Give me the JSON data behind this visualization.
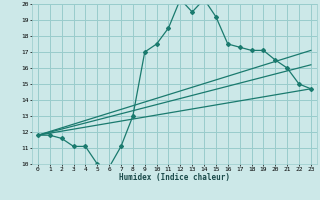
{
  "title": "",
  "xlabel": "Humidex (Indice chaleur)",
  "ylabel": "",
  "bg_color": "#cce8e8",
  "grid_color": "#99cccc",
  "line_color": "#1a7a6e",
  "xlim": [
    -0.5,
    23.5
  ],
  "ylim": [
    10,
    20
  ],
  "yticks": [
    10,
    11,
    12,
    13,
    14,
    15,
    16,
    17,
    18,
    19,
    20
  ],
  "xticks": [
    0,
    1,
    2,
    3,
    4,
    5,
    6,
    7,
    8,
    9,
    10,
    11,
    12,
    13,
    14,
    15,
    16,
    17,
    18,
    19,
    20,
    21,
    22,
    23
  ],
  "series1_x": [
    0,
    1,
    2,
    3,
    4,
    5,
    6,
    7,
    8,
    9,
    10,
    11,
    12,
    13,
    14,
    15,
    16,
    17,
    18,
    19,
    20,
    21,
    22,
    23
  ],
  "series1_y": [
    11.8,
    11.8,
    11.6,
    11.1,
    11.1,
    10.0,
    9.8,
    11.1,
    13.0,
    17.0,
    17.5,
    18.5,
    20.3,
    19.5,
    20.3,
    19.2,
    17.5,
    17.3,
    17.1,
    17.1,
    16.5,
    16.0,
    15.0,
    14.7
  ],
  "series2_x": [
    0,
    23
  ],
  "series2_y": [
    11.8,
    14.7
  ],
  "series3_x": [
    0,
    23
  ],
  "series3_y": [
    11.8,
    16.2
  ],
  "series4_x": [
    0,
    23
  ],
  "series4_y": [
    11.8,
    17.1
  ]
}
